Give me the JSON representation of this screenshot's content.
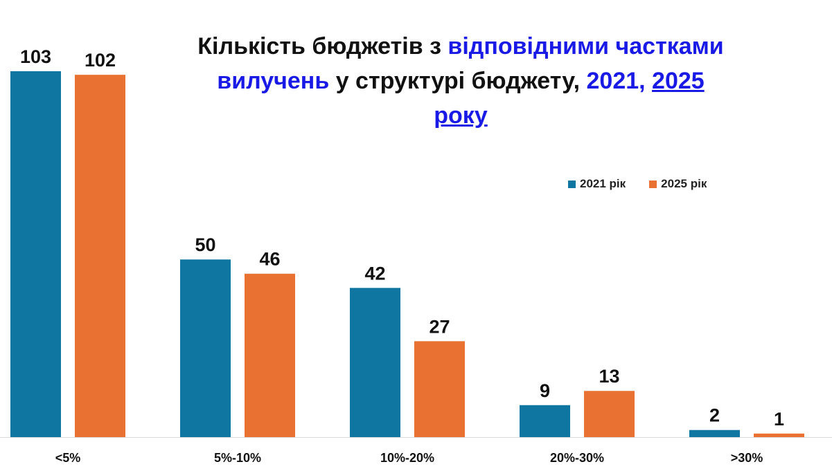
{
  "chart_data": {
    "type": "bar",
    "title_parts": [
      {
        "text": "Кількість бюджетів з ",
        "style": "plain"
      },
      {
        "text": "відповідними частками вилучень",
        "style": "accent"
      },
      {
        "text": " у структурі бюджету, ",
        "style": "plain"
      },
      {
        "text": "2021, ",
        "style": "accent"
      },
      {
        "text": "2025 року",
        "style": "accent-underline"
      }
    ],
    "categories": [
      "<5%",
      "5%-10%",
      "10%-20%",
      "20%-30%",
      ">30%"
    ],
    "series": [
      {
        "name": "2021 рік",
        "color": "#0e76a0",
        "values": [
          103,
          50,
          42,
          9,
          2
        ]
      },
      {
        "name": "2025 рік",
        "color": "#e97132",
        "values": [
          102,
          46,
          27,
          13,
          1
        ]
      }
    ],
    "ylim": [
      0,
      106
    ],
    "grid": false,
    "legend_position": "top-right",
    "data_labels": true
  }
}
